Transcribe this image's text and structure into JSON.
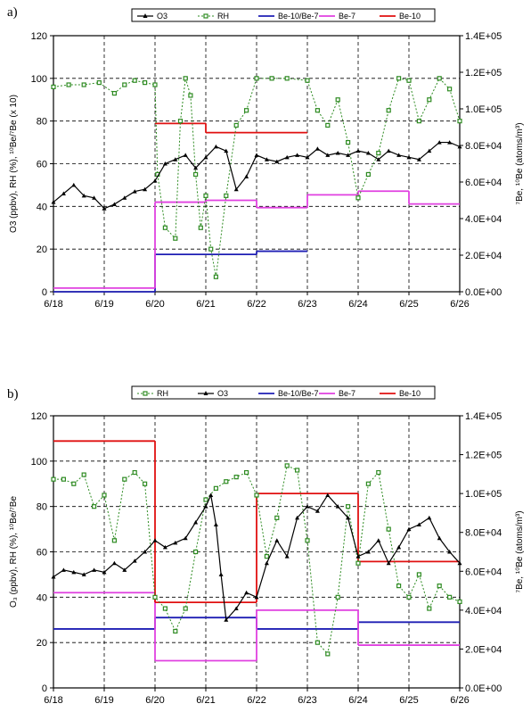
{
  "chart_data": [
    {
      "panel_label": "a)",
      "type": "line",
      "legend": [
        "O3",
        "RH",
        "Be-10/Be-7",
        "Be-7",
        "Be-10"
      ],
      "left_ylabel": "O3 (ppbv), RH (%), ¹⁰Be/⁷Be (x 10)",
      "right_ylabel": "⁷Be, ¹⁰Be (atoms/m³)",
      "x_ticks": [
        "6/18",
        "6/19",
        "6/20",
        "6/21",
        "6/22",
        "6/23",
        "6/24",
        "6/25",
        "6/26"
      ],
      "left_ticks": [
        "0",
        "20",
        "40",
        "60",
        "80",
        "100",
        "120"
      ],
      "right_ticks": [
        "0.0E+00",
        "2.0E+04",
        "4.0E+04",
        "6.0E+04",
        "8.0E+04",
        "1.0E+05",
        "1.2E+05",
        "1.4E+05"
      ],
      "xlim": [
        0,
        8
      ],
      "ylim": [
        0,
        120
      ],
      "y2lim": [
        0,
        140000
      ],
      "grid": true,
      "colors": {
        "O3": "#000000",
        "RH": "#2e8b22",
        "ratio": "#1f1fb4",
        "Be7": "#e040e0",
        "Be10": "#e01010"
      },
      "ratio_steps": [
        [
          0,
          2,
          0
        ],
        [
          2,
          4,
          17.5
        ],
        [
          4,
          5,
          19
        ]
      ],
      "be7_steps": [
        [
          0,
          2,
          2000
        ],
        [
          2,
          3,
          49000
        ],
        [
          3,
          4,
          50000
        ],
        [
          4,
          5,
          46000
        ],
        [
          5,
          6,
          53000
        ],
        [
          6,
          7,
          55000
        ],
        [
          7,
          8,
          48000
        ]
      ],
      "be10_steps": [
        [
          2,
          3,
          92000
        ],
        [
          3,
          5,
          87000
        ]
      ],
      "o3_points": [
        [
          0.0,
          42
        ],
        [
          0.2,
          46
        ],
        [
          0.4,
          50
        ],
        [
          0.6,
          45
        ],
        [
          0.8,
          44
        ],
        [
          1.0,
          39
        ],
        [
          1.2,
          41
        ],
        [
          1.4,
          44
        ],
        [
          1.6,
          47
        ],
        [
          1.8,
          48
        ],
        [
          2.0,
          52
        ],
        [
          2.2,
          60
        ],
        [
          2.4,
          62
        ],
        [
          2.6,
          64
        ],
        [
          2.8,
          58
        ],
        [
          3.0,
          63
        ],
        [
          3.2,
          68
        ],
        [
          3.4,
          66
        ],
        [
          3.6,
          48
        ],
        [
          3.8,
          54
        ],
        [
          4.0,
          64
        ],
        [
          4.2,
          62
        ],
        [
          4.4,
          61
        ],
        [
          4.6,
          63
        ],
        [
          4.8,
          64
        ],
        [
          5.0,
          63
        ],
        [
          5.2,
          67
        ],
        [
          5.4,
          64
        ],
        [
          5.6,
          65
        ],
        [
          5.8,
          64
        ],
        [
          6.0,
          66
        ],
        [
          6.2,
          65
        ],
        [
          6.4,
          62
        ],
        [
          6.6,
          66
        ],
        [
          6.8,
          64
        ],
        [
          7.0,
          63
        ],
        [
          7.2,
          62
        ],
        [
          7.4,
          66
        ],
        [
          7.6,
          70
        ],
        [
          7.8,
          70
        ],
        [
          8.0,
          68
        ]
      ],
      "rh_points": [
        [
          0.0,
          96
        ],
        [
          0.3,
          97
        ],
        [
          0.6,
          97
        ],
        [
          0.9,
          98
        ],
        [
          1.2,
          93
        ],
        [
          1.4,
          97
        ],
        [
          1.6,
          99
        ],
        [
          1.8,
          98
        ],
        [
          2.0,
          97
        ],
        [
          2.05,
          55
        ],
        [
          2.2,
          30
        ],
        [
          2.4,
          25
        ],
        [
          2.5,
          80
        ],
        [
          2.6,
          100
        ],
        [
          2.7,
          92
        ],
        [
          2.8,
          55
        ],
        [
          2.9,
          30
        ],
        [
          3.0,
          45
        ],
        [
          3.1,
          20
        ],
        [
          3.2,
          7
        ],
        [
          3.4,
          45
        ],
        [
          3.6,
          78
        ],
        [
          3.8,
          85
        ],
        [
          4.0,
          100
        ],
        [
          4.3,
          100
        ],
        [
          4.6,
          100
        ],
        [
          5.0,
          99
        ],
        [
          5.2,
          85
        ],
        [
          5.4,
          78
        ],
        [
          5.6,
          90
        ],
        [
          5.8,
          70
        ],
        [
          6.0,
          44
        ],
        [
          6.2,
          55
        ],
        [
          6.4,
          65
        ],
        [
          6.6,
          85
        ],
        [
          6.8,
          100
        ],
        [
          7.0,
          99
        ],
        [
          7.2,
          80
        ],
        [
          7.4,
          90
        ],
        [
          7.6,
          100
        ],
        [
          7.8,
          95
        ],
        [
          8.0,
          80
        ]
      ]
    },
    {
      "panel_label": "b)",
      "type": "line",
      "legend": [
        "RH",
        "O3",
        "Be-10/Be-7",
        "Be-7",
        "Be-10"
      ],
      "left_ylabel": "O₃ (ppbv), RH (%), ¹⁰Be/⁷Be",
      "right_ylabel": "⁷Be, ¹⁰Be (atoms/m³)",
      "x_ticks": [
        "6/18",
        "6/19",
        "6/20",
        "6/21",
        "6/22",
        "6/23",
        "6/24",
        "6/25",
        "6/26"
      ],
      "left_ticks": [
        "0",
        "20",
        "40",
        "60",
        "80",
        "100",
        "120"
      ],
      "right_ticks": [
        "0.0E+00",
        "2.0E+04",
        "4.0E+04",
        "6.0E+04",
        "8.0E+04",
        "1.0E+05",
        "1.2E+05",
        "1.4E+05"
      ],
      "xlim": [
        0,
        8
      ],
      "ylim": [
        0,
        120
      ],
      "y2lim": [
        0,
        140000
      ],
      "grid": true,
      "colors": {
        "O3": "#000000",
        "RH": "#2e8b22",
        "ratio": "#1f1fb4",
        "Be7": "#e040e0",
        "Be10": "#e01010"
      },
      "ratio_steps": [
        [
          0,
          2,
          26
        ],
        [
          2,
          4,
          31
        ],
        [
          4,
          6,
          26
        ],
        [
          6,
          8,
          29
        ]
      ],
      "be7_steps": [
        [
          0,
          2,
          49000
        ],
        [
          2,
          4,
          14000
        ],
        [
          4,
          6,
          40000
        ],
        [
          6,
          8,
          22000
        ]
      ],
      "be10_steps": [
        [
          0,
          2,
          127000
        ],
        [
          2,
          4,
          44000
        ],
        [
          4,
          6,
          100000
        ],
        [
          6,
          8,
          65000
        ]
      ],
      "o3_points": [
        [
          0.0,
          49
        ],
        [
          0.2,
          52
        ],
        [
          0.4,
          51
        ],
        [
          0.6,
          50
        ],
        [
          0.8,
          52
        ],
        [
          1.0,
          51
        ],
        [
          1.2,
          55
        ],
        [
          1.4,
          52
        ],
        [
          1.6,
          56
        ],
        [
          1.8,
          60
        ],
        [
          2.0,
          65
        ],
        [
          2.2,
          62
        ],
        [
          2.4,
          64
        ],
        [
          2.6,
          66
        ],
        [
          2.8,
          73
        ],
        [
          3.0,
          80
        ],
        [
          3.1,
          85
        ],
        [
          3.2,
          72
        ],
        [
          3.3,
          50
        ],
        [
          3.4,
          30
        ],
        [
          3.6,
          35
        ],
        [
          3.8,
          42
        ],
        [
          4.0,
          40
        ],
        [
          4.2,
          55
        ],
        [
          4.4,
          65
        ],
        [
          4.6,
          58
        ],
        [
          4.8,
          75
        ],
        [
          5.0,
          80
        ],
        [
          5.2,
          78
        ],
        [
          5.4,
          85
        ],
        [
          5.6,
          80
        ],
        [
          5.8,
          75
        ],
        [
          6.0,
          58
        ],
        [
          6.2,
          60
        ],
        [
          6.4,
          65
        ],
        [
          6.6,
          55
        ],
        [
          6.8,
          62
        ],
        [
          7.0,
          70
        ],
        [
          7.2,
          72
        ],
        [
          7.4,
          75
        ],
        [
          7.6,
          66
        ],
        [
          7.8,
          60
        ],
        [
          8.0,
          55
        ]
      ],
      "rh_points": [
        [
          0.0,
          92
        ],
        [
          0.2,
          92
        ],
        [
          0.4,
          90
        ],
        [
          0.6,
          94
        ],
        [
          0.8,
          80
        ],
        [
          1.0,
          85
        ],
        [
          1.2,
          65
        ],
        [
          1.4,
          92
        ],
        [
          1.6,
          95
        ],
        [
          1.8,
          90
        ],
        [
          2.0,
          40
        ],
        [
          2.2,
          35
        ],
        [
          2.4,
          25
        ],
        [
          2.6,
          35
        ],
        [
          2.8,
          60
        ],
        [
          3.0,
          83
        ],
        [
          3.2,
          88
        ],
        [
          3.4,
          91
        ],
        [
          3.6,
          93
        ],
        [
          3.8,
          95
        ],
        [
          4.0,
          85
        ],
        [
          4.2,
          58
        ],
        [
          4.4,
          75
        ],
        [
          4.6,
          98
        ],
        [
          4.8,
          96
        ],
        [
          5.0,
          65
        ],
        [
          5.2,
          20
        ],
        [
          5.4,
          15
        ],
        [
          5.6,
          40
        ],
        [
          5.8,
          80
        ],
        [
          6.0,
          55
        ],
        [
          6.2,
          90
        ],
        [
          6.4,
          95
        ],
        [
          6.6,
          70
        ],
        [
          6.8,
          45
        ],
        [
          7.0,
          40
        ],
        [
          7.2,
          50
        ],
        [
          7.4,
          35
        ],
        [
          7.6,
          45
        ],
        [
          7.8,
          40
        ],
        [
          8.0,
          38
        ]
      ]
    }
  ]
}
